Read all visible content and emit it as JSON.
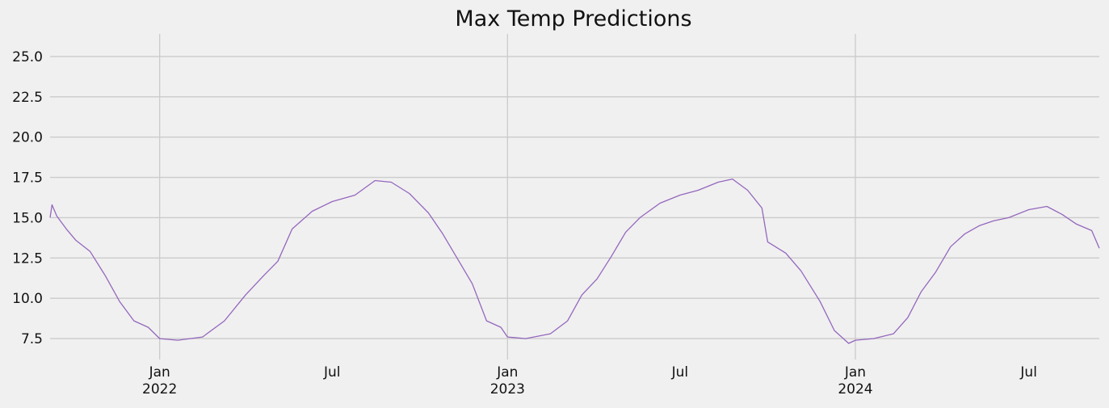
{
  "chart_data": {
    "type": "line",
    "title": "Max Temp Predictions",
    "xlabel": "",
    "ylabel": "",
    "x_range": [
      "2021-09-08",
      "2024-09-13"
    ],
    "ylim": [
      6.2,
      26.4
    ],
    "y_ticks": [
      7.5,
      10.0,
      12.5,
      15.0,
      17.5,
      20.0,
      22.5,
      25.0
    ],
    "x_ticks": [
      {
        "date": "2022-01-01",
        "label": "Jan",
        "sublabel": "2022",
        "major": true
      },
      {
        "date": "2022-07-01",
        "label": "Jul",
        "sublabel": "",
        "major": false
      },
      {
        "date": "2023-01-01",
        "label": "Jan",
        "sublabel": "2023",
        "major": true
      },
      {
        "date": "2023-07-01",
        "label": "Jul",
        "sublabel": "",
        "major": false
      },
      {
        "date": "2024-01-01",
        "label": "Jan",
        "sublabel": "2024",
        "major": true
      },
      {
        "date": "2024-07-01",
        "label": "Jul",
        "sublabel": "",
        "major": false
      }
    ],
    "grid": true,
    "series": [
      {
        "color": "#9467bd",
        "x": [
          "2021-09-08",
          "2021-09-10",
          "2021-09-15",
          "2021-09-25",
          "2021-10-05",
          "2021-10-20",
          "2021-11-05",
          "2021-11-20",
          "2021-12-05",
          "2021-12-20",
          "2022-01-01",
          "2022-01-20",
          "2022-02-15",
          "2022-03-10",
          "2022-04-01",
          "2022-04-20",
          "2022-05-05",
          "2022-05-20",
          "2022-06-10",
          "2022-07-01",
          "2022-07-25",
          "2022-08-15",
          "2022-09-01",
          "2022-09-20",
          "2022-10-10",
          "2022-10-25",
          "2022-11-10",
          "2022-11-25",
          "2022-12-10",
          "2022-12-25",
          "2023-01-01",
          "2023-01-20",
          "2023-02-15",
          "2023-03-05",
          "2023-03-20",
          "2023-04-05",
          "2023-04-20",
          "2023-05-05",
          "2023-05-20",
          "2023-06-10",
          "2023-07-01",
          "2023-07-20",
          "2023-08-10",
          "2023-08-25",
          "2023-09-10",
          "2023-09-25",
          "2023-10-01",
          "2023-10-20",
          "2023-11-05",
          "2023-11-25",
          "2023-12-10",
          "2023-12-25",
          "2024-01-01",
          "2024-01-20",
          "2024-02-10",
          "2024-02-25",
          "2024-03-10",
          "2024-03-25",
          "2024-04-10",
          "2024-04-25",
          "2024-05-10",
          "2024-05-25",
          "2024-06-10",
          "2024-07-01",
          "2024-07-20",
          "2024-08-05",
          "2024-08-20",
          "2024-09-05",
          "2024-09-13"
        ],
        "y": [
          15.0,
          15.8,
          15.1,
          14.3,
          13.6,
          12.9,
          11.4,
          9.8,
          8.6,
          8.2,
          7.5,
          7.4,
          7.6,
          8.6,
          10.2,
          11.4,
          12.3,
          14.3,
          15.4,
          16.0,
          16.4,
          17.3,
          17.2,
          16.5,
          15.3,
          14.0,
          12.4,
          10.9,
          8.6,
          8.2,
          7.6,
          7.5,
          7.8,
          8.6,
          10.2,
          11.2,
          12.6,
          14.1,
          15.0,
          15.9,
          16.4,
          16.7,
          17.2,
          17.4,
          16.7,
          15.6,
          13.5,
          12.8,
          11.7,
          9.8,
          8.0,
          7.2,
          7.4,
          7.5,
          7.8,
          8.8,
          10.4,
          11.6,
          13.2,
          14.0,
          14.5,
          14.8,
          15.0,
          15.5,
          15.7,
          15.2,
          14.6,
          14.2,
          13.1
        ]
      }
    ]
  }
}
